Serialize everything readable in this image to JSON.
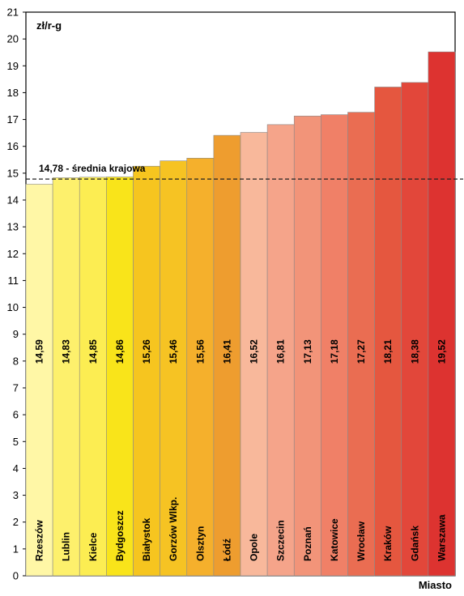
{
  "chart_data": {
    "type": "bar",
    "ylabel": "zł/r-g",
    "xlabel": "Miasto",
    "ylim": [
      0,
      21
    ],
    "yticks": [
      0,
      1,
      2,
      3,
      4,
      5,
      6,
      7,
      8,
      9,
      10,
      11,
      12,
      13,
      14,
      15,
      16,
      17,
      18,
      19,
      20,
      21
    ],
    "categories": [
      "Rzeszów",
      "Lublin",
      "Kielce",
      "Bydgoszcz",
      "Białystok",
      "Gorzów Wlkp.",
      "Olsztyn",
      "Łódź",
      "Opole",
      "Szczecin",
      "Poznań",
      "Katowice",
      "Wrocław",
      "Kraków",
      "Gdańsk",
      "Warszawa"
    ],
    "values": [
      14.59,
      14.83,
      14.85,
      14.86,
      15.26,
      15.46,
      15.56,
      16.41,
      16.52,
      16.81,
      17.13,
      17.18,
      17.27,
      18.21,
      18.38,
      19.52
    ],
    "value_labels": [
      "14,59",
      "14,83",
      "14,85",
      "14,86",
      "15,26",
      "15,46",
      "15,56",
      "16,41",
      "16,52",
      "16,81",
      "17,13",
      "17,18",
      "17,27",
      "18,21",
      "18,38",
      "19,52"
    ],
    "colors": [
      "#fff7a6",
      "#fdf06c",
      "#fced52",
      "#f9e41a",
      "#f6c51f",
      "#f6c323",
      "#f5b02c",
      "#ee9d2f",
      "#f8b89b",
      "#f5a48a",
      "#f29479",
      "#f08067",
      "#ea6d52",
      "#e5573f",
      "#e2473a",
      "#dd3330"
    ],
    "reference_line": {
      "value": 14.78,
      "label": "14,78  - średnia krajowa"
    },
    "grid": false,
    "legend": "none"
  }
}
